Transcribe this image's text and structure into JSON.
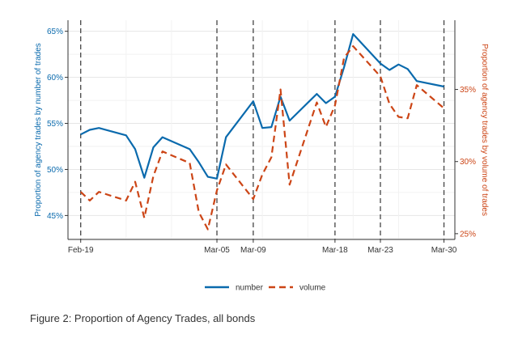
{
  "caption": "Figure 2: Proportion of Agency Trades, all bonds",
  "chart_data": {
    "type": "line",
    "title": "",
    "ylabel_left": "Proportion of agency trades by number of trades",
    "ylabel_right": "Proportion of agency trades by volume of trades",
    "y_left_ticks": [
      "45%",
      "50%",
      "55%",
      "60%",
      "65%"
    ],
    "y_left_tick_values": [
      45,
      50,
      55,
      60,
      65
    ],
    "y_right_ticks": [
      "25%",
      "30%",
      "35%"
    ],
    "y_right_tick_values": [
      25,
      30,
      35
    ],
    "x_ticks": [
      "Feb-19",
      "Mar-05",
      "Mar-09",
      "Mar-18",
      "Mar-23",
      "Mar-30"
    ],
    "x_tick_days": [
      0,
      15,
      19,
      28,
      33,
      40
    ],
    "vlines_days": [
      0,
      15,
      19,
      28,
      33,
      40
    ],
    "legend": {
      "position": "bottom",
      "items": [
        {
          "label": "number",
          "color": "#0a6aad",
          "dash": "solid"
        },
        {
          "label": "volume",
          "color": "#cc4516",
          "dash": "dashed"
        }
      ]
    },
    "grid": true,
    "series": [
      {
        "name": "number",
        "axis": "left",
        "color": "#0a6aad",
        "x_days": [
          0,
          1,
          2,
          5,
          6,
          7,
          8,
          9,
          12,
          13,
          14,
          15,
          16,
          19,
          20,
          21,
          22,
          23,
          26,
          27,
          28,
          29,
          30,
          33,
          34,
          35,
          36,
          37,
          40
        ],
        "values": [
          53.8,
          54.3,
          54.5,
          53.7,
          52.2,
          49.1,
          52.4,
          53.5,
          52.2,
          50.8,
          49.2,
          49.0,
          53.5,
          57.4,
          54.5,
          54.6,
          57.9,
          55.3,
          58.2,
          57.2,
          57.9,
          61.1,
          64.7,
          61.5,
          60.8,
          61.4,
          60.9,
          59.6,
          59.0
        ]
      },
      {
        "name": "volume",
        "axis": "right",
        "color": "#cc4516",
        "x_days": [
          0,
          1,
          2,
          5,
          6,
          7,
          8,
          9,
          12,
          13,
          14,
          15,
          16,
          19,
          20,
          21,
          22,
          23,
          26,
          27,
          28,
          29,
          30,
          33,
          34,
          35,
          36,
          37,
          40
        ],
        "values": [
          27.9,
          27.3,
          27.9,
          27.3,
          28.6,
          26.1,
          29.0,
          30.7,
          29.9,
          26.5,
          25.3,
          28.0,
          29.8,
          27.4,
          29.1,
          30.3,
          35.0,
          28.4,
          34.1,
          32.4,
          33.9,
          37.2,
          38.0,
          35.9,
          34.0,
          33.1,
          33.0,
          35.3,
          33.7
        ]
      }
    ]
  }
}
